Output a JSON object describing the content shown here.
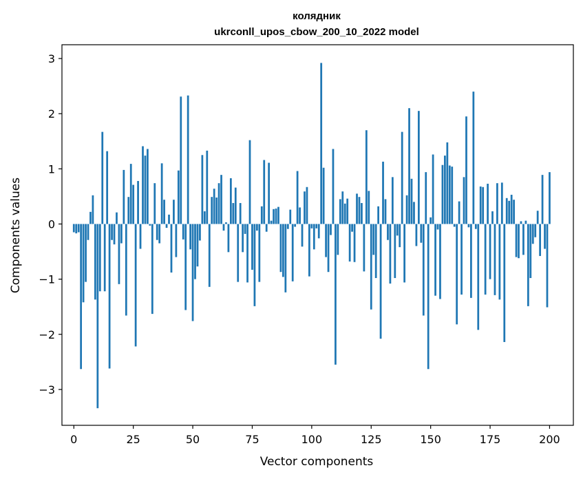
{
  "chart_data": {
    "type": "bar",
    "title": "колядник",
    "subtitle": "ukrconll_upos_cbow_200_10_2022 model",
    "xlabel": "Vector components",
    "ylabel": "Components values",
    "xlim": [
      -5,
      210
    ],
    "ylim": [
      -3.65,
      3.25
    ],
    "xticks": [
      0,
      25,
      50,
      75,
      100,
      125,
      150,
      175,
      200
    ],
    "yticks": [
      3,
      2,
      1,
      0,
      -1,
      -2,
      -3
    ],
    "ytick_labels": [
      "3",
      "2",
      "1",
      "0",
      "−1",
      "−2",
      "−3"
    ],
    "grid": false,
    "series": [
      {
        "color": "#1f77b4",
        "x_start": 0,
        "values": [
          -0.15,
          -0.17,
          -0.15,
          -2.63,
          -1.42,
          -1.05,
          -0.29,
          0.22,
          0.52,
          -1.37,
          -3.34,
          -1.22,
          1.67,
          -1.22,
          1.32,
          -2.62,
          -0.29,
          -0.37,
          0.21,
          -1.09,
          -0.35,
          0.98,
          -1.66,
          0.49,
          1.09,
          0.71,
          -2.22,
          0.78,
          -0.45,
          1.41,
          1.24,
          1.36,
          -0.03,
          -1.63,
          0.74,
          -0.29,
          -0.35,
          1.1,
          0.44,
          -0.07,
          0.17,
          -0.88,
          0.44,
          -0.6,
          0.97,
          2.31,
          -0.28,
          -1.56,
          2.33,
          -0.46,
          -1.76,
          -1.0,
          -0.77,
          -0.3,
          1.25,
          0.23,
          1.33,
          -1.14,
          0.49,
          0.64,
          0.48,
          0.74,
          0.89,
          -0.12,
          0.03,
          -0.51,
          0.83,
          0.38,
          0.66,
          -1.05,
          0.38,
          -0.51,
          -0.18,
          -1.06,
          1.52,
          -0.83,
          -1.49,
          -0.12,
          -1.05,
          0.32,
          1.16,
          -0.14,
          1.11,
          0.06,
          0.27,
          0.28,
          0.31,
          -0.87,
          -0.96,
          -1.24,
          -0.09,
          0.26,
          -1.04,
          -0.05,
          0.96,
          0.3,
          -0.41,
          0.59,
          0.67,
          -0.95,
          -0.08,
          -0.46,
          -0.08,
          -0.26,
          2.92,
          1.02,
          -0.6,
          -0.87,
          -0.2,
          1.36,
          -2.55,
          -0.56,
          0.45,
          0.59,
          0.37,
          0.46,
          -0.68,
          -0.14,
          -0.69,
          0.55,
          0.49,
          0.38,
          -0.86,
          1.7,
          0.6,
          -1.55,
          -0.56,
          -0.98,
          0.32,
          -2.08,
          1.13,
          0.45,
          -0.29,
          -1.08,
          0.85,
          -0.98,
          -0.21,
          -0.42,
          1.67,
          -1.06,
          0.52,
          2.1,
          0.82,
          0.4,
          -0.4,
          2.05,
          -0.34,
          -1.66,
          0.94,
          -2.63,
          0.12,
          1.26,
          -1.3,
          -0.1,
          -1.36,
          1.07,
          1.24,
          1.48,
          1.06,
          1.04,
          -0.05,
          -1.82,
          0.41,
          -1.28,
          0.85,
          1.95,
          -0.06,
          -1.34,
          2.4,
          -0.09,
          -1.92,
          0.68,
          0.67,
          -1.28,
          0.73,
          -1.0,
          0.23,
          -1.29,
          0.74,
          -1.37,
          0.75,
          -2.14,
          0.47,
          0.42,
          0.53,
          0.44,
          -0.6,
          -0.62,
          0.05,
          -0.56,
          0.06,
          -1.49,
          -0.98,
          -0.36,
          -0.24,
          0.24,
          -0.58,
          0.89,
          -0.45,
          -1.51,
          0.94
        ]
      }
    ]
  }
}
